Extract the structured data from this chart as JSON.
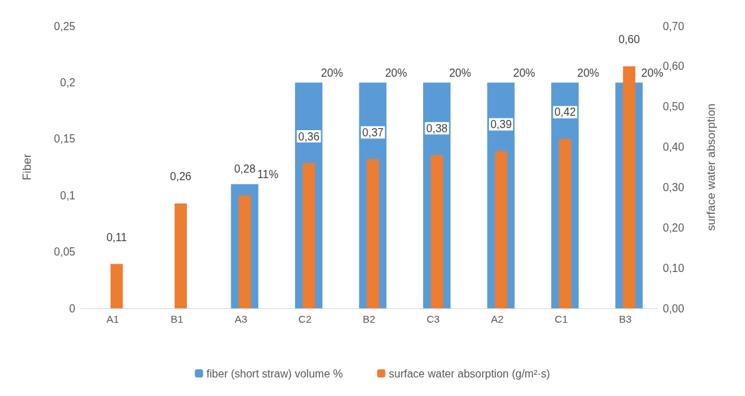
{
  "chart_data": {
    "type": "bar",
    "categories": [
      "A1",
      "B1",
      "A3",
      "C2",
      "B2",
      "C3",
      "A2",
      "C1",
      "B3"
    ],
    "ylabel": "Fiber",
    "y2label": "surface water absorption",
    "series": [
      {
        "name": "fiber (short straw) volume %",
        "color": "#5b9bd5",
        "values": [
          0,
          0,
          0.11,
          0.2,
          0.2,
          0.2,
          0.2,
          0.2,
          0.2
        ],
        "value_labels": [
          null,
          null,
          "11%",
          "20%",
          "20%",
          "20%",
          "20%",
          "20%",
          "20%"
        ]
      },
      {
        "name": "surface water absorption (g/m²·s)",
        "color": "#ed7d31",
        "axis": "y2",
        "values": [
          0.11,
          0.26,
          0.28,
          0.36,
          0.37,
          0.38,
          0.39,
          0.42,
          0.6
        ],
        "value_labels": [
          "0,11",
          "0,26",
          "0,28",
          "0,36",
          "0,37",
          "0,38",
          "0,39",
          "0,42",
          "0,60"
        ]
      }
    ],
    "ylim": [
      0,
      0.25
    ],
    "yticks": [
      {
        "value": 0,
        "label": "0"
      },
      {
        "value": 0.05,
        "label": "0,05"
      },
      {
        "value": 0.1,
        "label": "0,1"
      },
      {
        "value": 0.15,
        "label": "0,15"
      },
      {
        "value": 0.2,
        "label": "0,2"
      },
      {
        "value": 0.25,
        "label": "0,25"
      }
    ],
    "y2lim": [
      0,
      0.7
    ],
    "y2ticks": [
      {
        "value": 0,
        "label": "0,00"
      },
      {
        "value": 0.1,
        "label": "0,10"
      },
      {
        "value": 0.2,
        "label": "0,20"
      },
      {
        "value": 0.3,
        "label": "0,30"
      },
      {
        "value": 0.4,
        "label": "0,40"
      },
      {
        "value": 0.5,
        "label": "0,50"
      },
      {
        "value": 0.6,
        "label": "0,60"
      },
      {
        "value": 0.7,
        "label": "0,70"
      }
    ],
    "grid": false,
    "legend": "bottom"
  }
}
